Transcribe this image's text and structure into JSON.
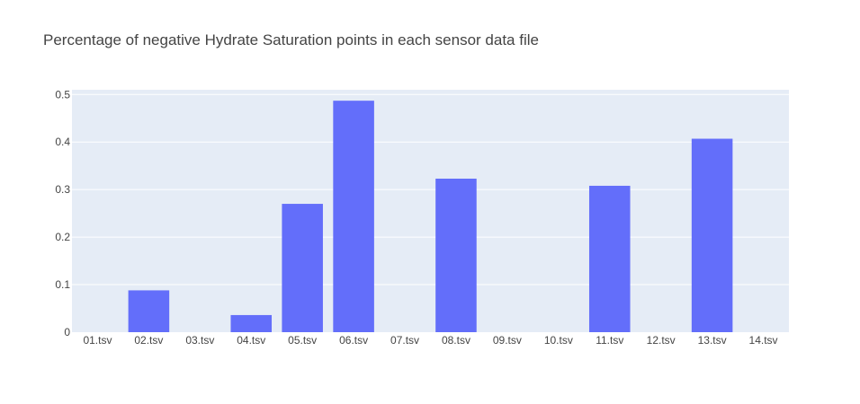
{
  "chart_data": {
    "type": "bar",
    "title": "Percentage of negative Hydrate Saturation points in each sensor data file",
    "xlabel": "",
    "ylabel": "",
    "categories": [
      "01.tsv",
      "02.tsv",
      "03.tsv",
      "04.tsv",
      "05.tsv",
      "06.tsv",
      "07.tsv",
      "08.tsv",
      "09.tsv",
      "10.tsv",
      "11.tsv",
      "12.tsv",
      "13.tsv",
      "14.tsv"
    ],
    "values": [
      0,
      0.088,
      0,
      0.036,
      0.27,
      0.487,
      0,
      0.323,
      0,
      0,
      0.308,
      0,
      0.407,
      0
    ],
    "ylim": [
      0,
      0.51
    ],
    "yticks": [
      0,
      0.1,
      0.2,
      0.3,
      0.4,
      0.5
    ],
    "ytick_labels": [
      "0",
      "0.1",
      "0.2",
      "0.3",
      "0.4",
      "0.5"
    ],
    "grid": true,
    "legend": "none",
    "colors": {
      "bar": "#636efa",
      "plot_background": "#e5ecf6",
      "gridline": "#ffffff",
      "text": "#444444"
    }
  }
}
